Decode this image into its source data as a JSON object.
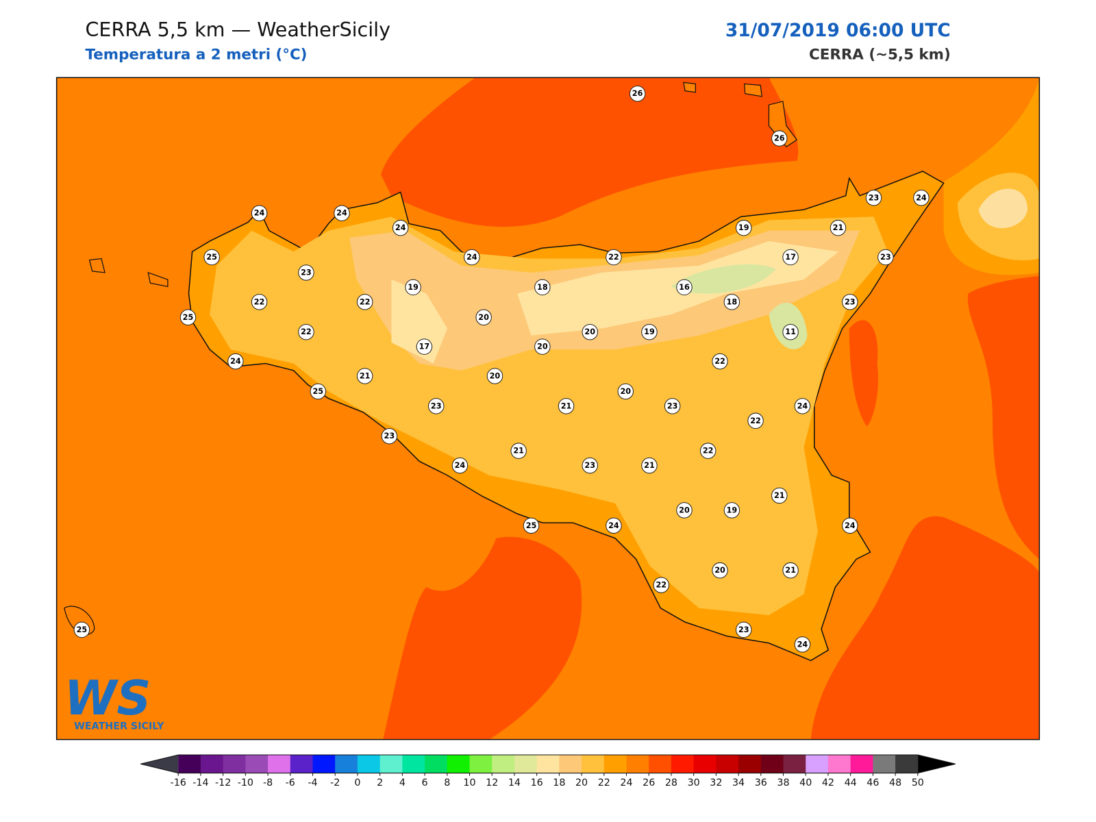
{
  "header": {
    "title": "CERRA 5,5 km — WeatherSicily",
    "subtitle": "Temperatura a 2 metri (°C)",
    "datetime": "31/07/2019 06:00 UTC",
    "model": "CERRA (~5,5 km)"
  },
  "map": {
    "station_labels": [
      26,
      26,
      24,
      24,
      24,
      23,
      24,
      25,
      23,
      24,
      22,
      19,
      21,
      17,
      23,
      19,
      18,
      16,
      18,
      23,
      22,
      22,
      25,
      20,
      22,
      20,
      19,
      11,
      17,
      20,
      24,
      22,
      21,
      20,
      25,
      20,
      23,
      21,
      23,
      24,
      22,
      23,
      21,
      22,
      24,
      23,
      21,
      21,
      20,
      19,
      25,
      24,
      24,
      22,
      20,
      21,
      23,
      24,
      25
    ]
  },
  "logo": {
    "letters": "WS",
    "name": "WEATHER SICILY"
  },
  "colorbar": {
    "ticks": [
      -16,
      -14,
      -12,
      -10,
      -8,
      -6,
      -4,
      -2,
      0,
      2,
      4,
      6,
      8,
      10,
      12,
      14,
      16,
      18,
      20,
      22,
      24,
      26,
      28,
      30,
      32,
      34,
      36,
      38,
      40,
      42,
      44,
      46,
      48,
      50
    ],
    "colors": [
      "#45005a",
      "#6a168e",
      "#7f2fa0",
      "#9b4bb5",
      "#df72ea",
      "#5a22c8",
      "#0018ff",
      "#1780db",
      "#0ac8e6",
      "#5ff0cf",
      "#00e6a0",
      "#00dd60",
      "#10f000",
      "#7df040",
      "#c0ee80",
      "#e0e89a",
      "#ffe4a0",
      "#fdc878",
      "#ffc13c",
      "#ffa000",
      "#ff8000",
      "#ff5000",
      "#ff1a00",
      "#e80000",
      "#c80000",
      "#9a0000",
      "#700018",
      "#7a2040",
      "#d8a0ff",
      "#ff78d0",
      "#ff1a9a",
      "#7a7a7a",
      "#3a3a3a"
    ],
    "under_color": "#3b3b48",
    "over_color": "#000000"
  }
}
